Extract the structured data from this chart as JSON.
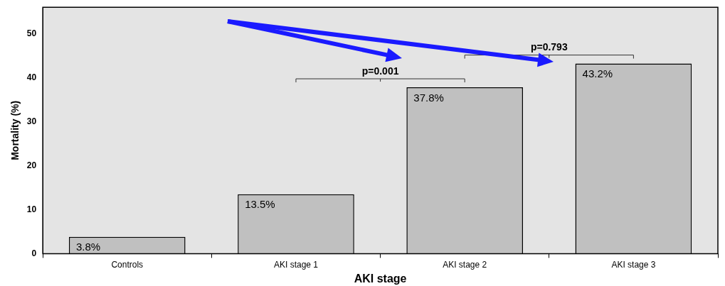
{
  "chart_data": {
    "type": "bar",
    "xlabel": "AKI stage",
    "ylabel": "Mortality (%)",
    "categories": [
      "Controls",
      "AKI stage 1",
      "AKI stage 2",
      "AKI stage 3"
    ],
    "values": [
      3.8,
      13.5,
      37.8,
      43.2
    ],
    "color": "#c0c0c0",
    "value_labels": [
      "3.8%",
      "13.5%",
      "37.8%",
      "43.2%"
    ],
    "ylim": [
      0,
      56
    ],
    "yticks": [
      0,
      10,
      20,
      30,
      40,
      50
    ],
    "grid": false,
    "legend": false,
    "annotations": [
      "p=0.001",
      "p=0.793"
    ]
  }
}
